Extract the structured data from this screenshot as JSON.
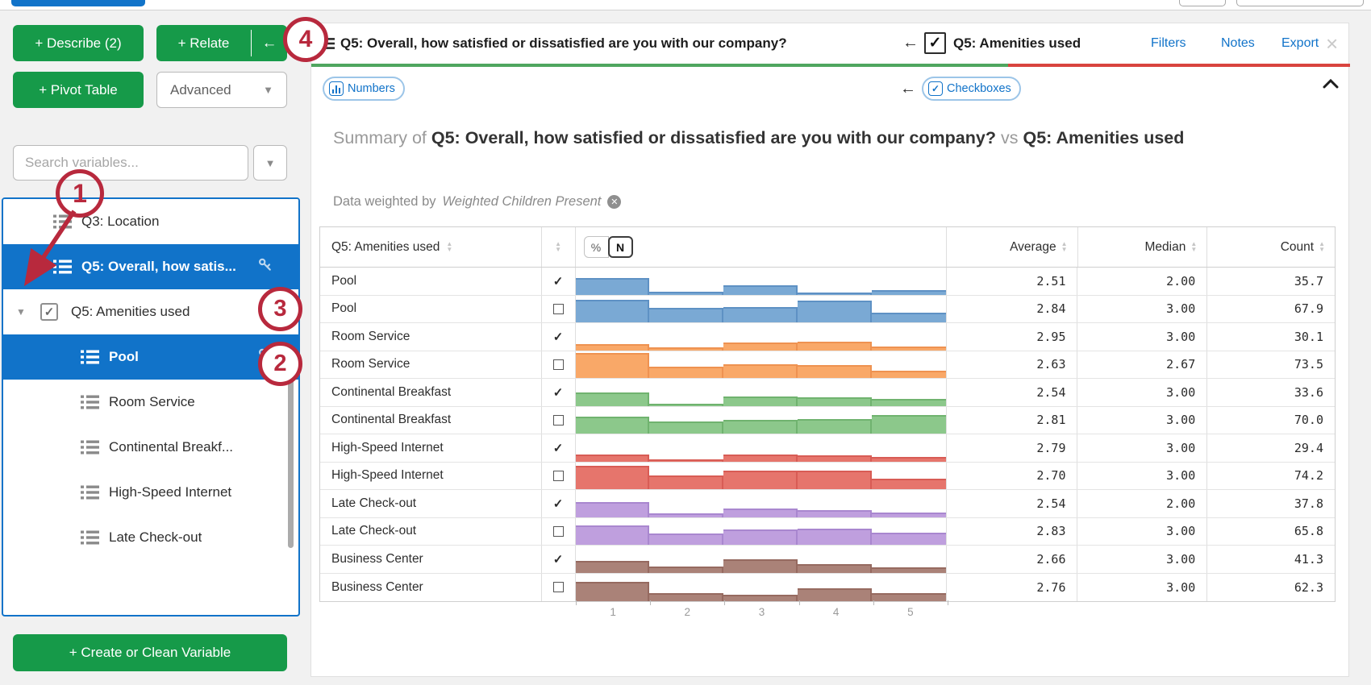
{
  "sidebar": {
    "describe_label": "+ Describe (2)",
    "relate_label": "+ Relate",
    "relate_back_arrow": "←",
    "pivot_label": "+ Pivot Table",
    "advanced_label": "Advanced",
    "search_placeholder": "Search variables...",
    "create_label": "+ Create or Clean Variable",
    "items": [
      {
        "label": "Q3: Location",
        "type": "variable",
        "indent": 0,
        "selected": false,
        "key": false
      },
      {
        "label": "Q5: Overall, how satis...",
        "type": "variable",
        "indent": 0,
        "selected": true,
        "key": true
      },
      {
        "label": "Q5: Amenities used",
        "type": "group",
        "expanded": true,
        "checked": true
      },
      {
        "label": "Pool",
        "type": "variable",
        "indent": 1,
        "selected": true,
        "key": true
      },
      {
        "label": "Room Service",
        "type": "variable",
        "indent": 1,
        "selected": false,
        "key": false
      },
      {
        "label": "Continental Breakf...",
        "type": "variable",
        "indent": 1,
        "selected": false,
        "key": false
      },
      {
        "label": "High-Speed Internet",
        "type": "variable",
        "indent": 1,
        "selected": false,
        "key": false
      },
      {
        "label": "Late Check-out",
        "type": "variable",
        "indent": 1,
        "selected": false,
        "key": false
      }
    ]
  },
  "panel": {
    "header": {
      "left_title": "Q5: Overall, how satisfied or dissatisfied are you with our company?",
      "back_arrow": "←",
      "right_title": "Q5: Amenities used",
      "links": {
        "filters": "Filters",
        "notes": "Notes",
        "export": "Export"
      },
      "close": "×",
      "underline_green": "#4fa65f",
      "underline_red": "#d9443f"
    },
    "pills": {
      "numbers": "Numbers",
      "back_arrow": "←",
      "checkboxes": "Checkboxes"
    },
    "summary": {
      "prefix": "Summary of",
      "var1": "Q5: Overall, how satisfied or dissatisfied are you with our company?",
      "vs": "vs",
      "var2": "Q5: Amenities used"
    },
    "weight": {
      "prefix": "Data weighted by",
      "name": "Weighted Children Present"
    }
  },
  "chart_data": {
    "type": "table",
    "title": "Summary of Q5: Overall, how satisfied or dissatisfied are you with our company? vs Q5: Amenities used",
    "weighted_by": "Weighted Children Present",
    "columns": {
      "label_col": "Q5: Amenities used",
      "average": "Average",
      "median": "Median",
      "count": "Count"
    },
    "count_toggle": {
      "options": [
        "%",
        "N"
      ],
      "selected": "N"
    },
    "x_ticks": [
      "1",
      "2",
      "3",
      "4",
      "5"
    ],
    "histogram_note": "per-row response distribution for scale 1-5, heights relative 0-1",
    "rows": [
      {
        "label": "Pool",
        "checked": true,
        "average": "2.51",
        "median": "2.00",
        "count": "35.7",
        "color": "#7aa9d4",
        "edge": "#5e91c4",
        "hist": [
          0.62,
          0.11,
          0.35,
          0.08,
          0.17
        ]
      },
      {
        "label": "Pool",
        "checked": false,
        "average": "2.84",
        "median": "3.00",
        "count": "67.9",
        "color": "#7aa9d4",
        "edge": "#5e91c4",
        "hist": [
          0.85,
          0.55,
          0.58,
          0.8,
          0.37
        ]
      },
      {
        "label": "Room Service",
        "checked": true,
        "average": "2.95",
        "median": "3.00",
        "count": "30.1",
        "color": "#f9a868",
        "edge": "#ee9251",
        "hist": [
          0.22,
          0.1,
          0.28,
          0.3,
          0.12
        ]
      },
      {
        "label": "Room Service",
        "checked": false,
        "average": "2.63",
        "median": "2.67",
        "count": "73.5",
        "color": "#f9a868",
        "edge": "#ee9251",
        "hist": [
          0.92,
          0.42,
          0.5,
          0.48,
          0.28
        ]
      },
      {
        "label": "Continental Breakfast",
        "checked": true,
        "average": "2.54",
        "median": "3.00",
        "count": "33.6",
        "color": "#8cc88b",
        "edge": "#70b36f",
        "hist": [
          0.48,
          0.08,
          0.33,
          0.3,
          0.26
        ]
      },
      {
        "label": "Continental Breakfast",
        "checked": false,
        "average": "2.81",
        "median": "3.00",
        "count": "70.0",
        "color": "#8cc88b",
        "edge": "#70b36f",
        "hist": [
          0.62,
          0.45,
          0.5,
          0.55,
          0.7
        ]
      },
      {
        "label": "High-Speed Internet",
        "checked": true,
        "average": "2.79",
        "median": "3.00",
        "count": "29.4",
        "color": "#e6756c",
        "edge": "#d85c55",
        "hist": [
          0.26,
          0.08,
          0.24,
          0.22,
          0.15
        ]
      },
      {
        "label": "High-Speed Internet",
        "checked": false,
        "average": "2.70",
        "median": "3.00",
        "count": "74.2",
        "color": "#e6756c",
        "edge": "#d85c55",
        "hist": [
          0.88,
          0.52,
          0.68,
          0.7,
          0.4
        ]
      },
      {
        "label": "Late Check-out",
        "checked": true,
        "average": "2.54",
        "median": "2.00",
        "count": "37.8",
        "color": "#bf9fde",
        "edge": "#a987cf",
        "hist": [
          0.55,
          0.13,
          0.3,
          0.26,
          0.16
        ]
      },
      {
        "label": "Late Check-out",
        "checked": false,
        "average": "2.83",
        "median": "3.00",
        "count": "65.8",
        "color": "#bf9fde",
        "edge": "#a987cf",
        "hist": [
          0.72,
          0.42,
          0.58,
          0.6,
          0.45
        ]
      },
      {
        "label": "Business Center",
        "checked": true,
        "average": "2.66",
        "median": "3.00",
        "count": "41.3",
        "color": "#aa8278",
        "edge": "#966a60",
        "hist": [
          0.42,
          0.22,
          0.5,
          0.3,
          0.18
        ]
      },
      {
        "label": "Business Center",
        "checked": false,
        "average": "2.76",
        "median": "3.00",
        "count": "62.3",
        "color": "#aa8278",
        "edge": "#966a60",
        "hist": [
          0.7,
          0.3,
          0.22,
          0.45,
          0.3
        ]
      }
    ]
  },
  "annotations": {
    "color": "#b8293d",
    "circles": [
      {
        "n": "1"
      },
      {
        "n": "2"
      },
      {
        "n": "3"
      },
      {
        "n": "4"
      }
    ]
  }
}
